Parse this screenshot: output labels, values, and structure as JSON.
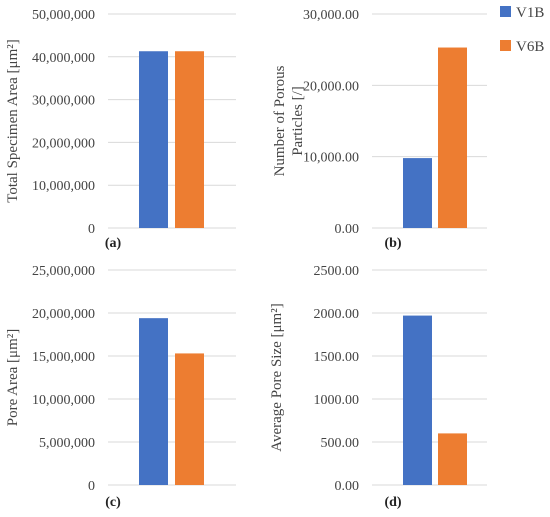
{
  "chart_data": [
    {
      "type": "bar",
      "panel_label": "(a)",
      "categories": [
        "V1B",
        "V6B"
      ],
      "ylabel": "Total Specimen Area [μm²]",
      "ylim": [
        0,
        50000000
      ],
      "yticks": [
        "0",
        "10,000,000",
        "20,000,000",
        "30,000,000",
        "40,000,000",
        "50,000,000"
      ],
      "values": [
        41300000,
        41300000
      ],
      "grid": true
    },
    {
      "type": "bar",
      "panel_label": "(b)",
      "categories": [
        "V1B",
        "V6B"
      ],
      "ylabel_lines": [
        "Number of Porous",
        "Particles [/]"
      ],
      "ylim": [
        0,
        30000
      ],
      "yticks": [
        "0.00",
        "10,000.00",
        "20,000.00",
        "30,000.00"
      ],
      "values": [
        9800,
        25300
      ],
      "grid": true
    },
    {
      "type": "bar",
      "panel_label": "(c)",
      "categories": [
        "V1B",
        "V6B"
      ],
      "ylabel": "Pore Area [μm²]",
      "ylim": [
        0,
        25000000
      ],
      "yticks": [
        "0",
        "5,000,000",
        "10,000,000",
        "15,000,000",
        "20,000,000",
        "25,000,000"
      ],
      "values": [
        19400000,
        15300000
      ],
      "grid": true
    },
    {
      "type": "bar",
      "panel_label": "(d)",
      "categories": [
        "V1B",
        "V6B"
      ],
      "ylabel": "Average Pore Size [μm²]",
      "ylim": [
        0,
        2500
      ],
      "yticks": [
        "0.00",
        "500.00",
        "1000.00",
        "1500.00",
        "2000.00",
        "2500.00"
      ],
      "values": [
        1970,
        600
      ],
      "grid": true
    }
  ],
  "legend": {
    "placement": "top-right",
    "items": [
      {
        "label": "V1B",
        "color": "#4472C4"
      },
      {
        "label": "V6B",
        "color": "#ED7D31"
      }
    ]
  },
  "colors": {
    "series": [
      "#4472C4",
      "#ED7D31"
    ],
    "grid": "#D9D9D9"
  }
}
